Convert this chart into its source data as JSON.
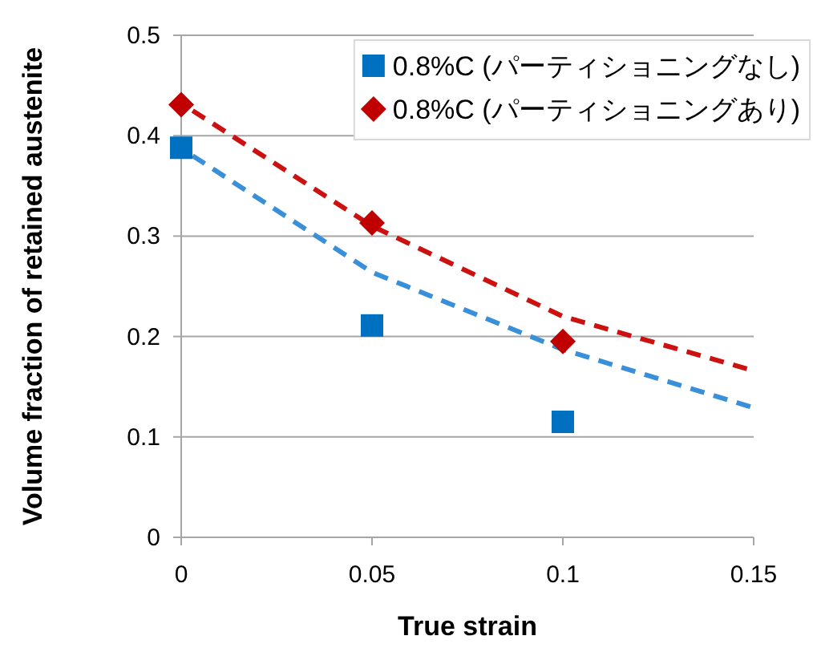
{
  "chart_data": {
    "type": "scatter",
    "xlabel": "True strain",
    "ylabel": "Volume fraction of retained austenite",
    "x": [
      0,
      0.05,
      0.1
    ],
    "xlim": [
      0,
      0.15
    ],
    "xticks": [
      0,
      0.05,
      0.1,
      0.15
    ],
    "ylim": [
      0,
      0.5
    ],
    "yticks": [
      0,
      0.1,
      0.2,
      0.3,
      0.4,
      0.5
    ],
    "grid": "y",
    "legend": "top right",
    "series": [
      {
        "name": "0.8%C (パーティショニングなし)",
        "color": "#0070c0",
        "marker": "square",
        "values": [
          0.388,
          0.211,
          0.115
        ]
      },
      {
        "name": "0.8%C (パーティショニングあり)",
        "color": "#c00000",
        "marker": "diamond",
        "values": [
          0.431,
          0.313,
          0.195
        ]
      },
      {
        "type": "line",
        "x": [
          0.003,
          0.05,
          0.1,
          0.15
        ],
        "color": "#3a8fd9",
        "line_style": "dashed",
        "marker": "none",
        "values": [
          0.38,
          0.264,
          0.187,
          0.129
        ]
      },
      {
        "type": "line",
        "x": [
          0.003,
          0.05,
          0.1,
          0.15
        ],
        "color": "#cc1111",
        "line_style": "dashed",
        "marker": "none",
        "values": [
          0.425,
          0.31,
          0.22,
          0.166
        ]
      }
    ]
  }
}
